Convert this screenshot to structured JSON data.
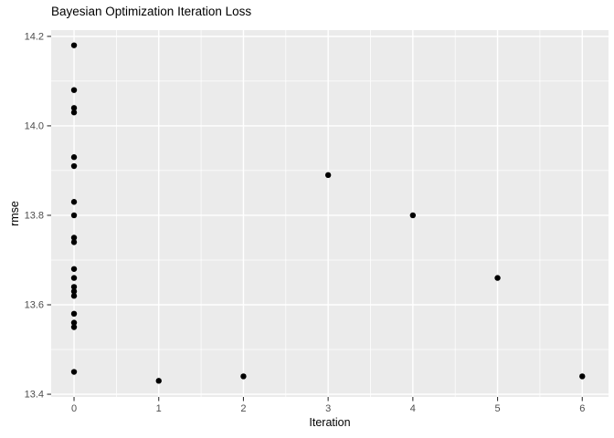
{
  "chart_data": {
    "type": "scatter",
    "title": "Bayesian Optimization Iteration Loss",
    "xlabel": "Iteration",
    "ylabel": "rmse",
    "xlim": [
      -0.27,
      6.31
    ],
    "ylim": [
      13.394,
      14.214
    ],
    "x_ticks": [
      0,
      1,
      2,
      3,
      4,
      5,
      6
    ],
    "x_tick_labels": [
      "0",
      "1",
      "2",
      "3",
      "4",
      "5",
      "6"
    ],
    "x_minor_ticks": [
      0.5,
      1.5,
      2.5,
      3.5,
      4.5,
      5.5
    ],
    "y_ticks": [
      13.4,
      13.6,
      13.8,
      14.0,
      14.2
    ],
    "y_tick_labels": [
      "13.4",
      "13.6",
      "13.8",
      "14.0",
      "14.2"
    ],
    "y_minor_ticks": [
      13.5,
      13.7,
      13.9,
      14.1
    ],
    "grid": "white major and minor gridlines on gray panel",
    "legend": "none",
    "points": [
      {
        "x": 0,
        "y": 14.18
      },
      {
        "x": 0,
        "y": 14.08
      },
      {
        "x": 0,
        "y": 14.04
      },
      {
        "x": 0,
        "y": 14.03
      },
      {
        "x": 0,
        "y": 13.93
      },
      {
        "x": 0,
        "y": 13.91
      },
      {
        "x": 0,
        "y": 13.83
      },
      {
        "x": 0,
        "y": 13.8
      },
      {
        "x": 0,
        "y": 13.75
      },
      {
        "x": 0,
        "y": 13.74
      },
      {
        "x": 0,
        "y": 13.68
      },
      {
        "x": 0,
        "y": 13.66
      },
      {
        "x": 0,
        "y": 13.64
      },
      {
        "x": 0,
        "y": 13.63
      },
      {
        "x": 0,
        "y": 13.62
      },
      {
        "x": 0,
        "y": 13.58
      },
      {
        "x": 0,
        "y": 13.56
      },
      {
        "x": 0,
        "y": 13.55
      },
      {
        "x": 0,
        "y": 13.45
      },
      {
        "x": 1,
        "y": 13.43
      },
      {
        "x": 2,
        "y": 13.44
      },
      {
        "x": 3,
        "y": 13.89
      },
      {
        "x": 4,
        "y": 13.8
      },
      {
        "x": 5,
        "y": 13.66
      },
      {
        "x": 6,
        "y": 13.44
      }
    ],
    "colors": {
      "panel_background": "#EBEBEB",
      "gridline": "#FFFFFF",
      "point": "#000000",
      "tick_mark": "#333333",
      "tick_label": "#4D4D4D",
      "title": "#000000",
      "axis_title": "#000000",
      "figure_background": "#FFFFFF"
    }
  }
}
